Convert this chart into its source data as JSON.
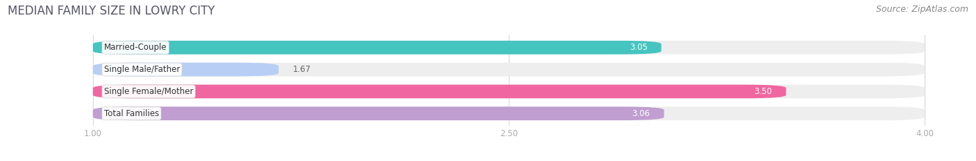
{
  "title": "MEDIAN FAMILY SIZE IN LOWRY CITY",
  "source": "Source: ZipAtlas.com",
  "categories": [
    "Married-Couple",
    "Single Male/Father",
    "Single Female/Mother",
    "Total Families"
  ],
  "values": [
    3.05,
    1.67,
    3.5,
    3.06
  ],
  "bar_colors": [
    "#45c4c0",
    "#b8cef5",
    "#f066a0",
    "#c09ed0"
  ],
  "value_inside": [
    true,
    false,
    true,
    true
  ],
  "xlim_data": [
    0.7,
    4.15
  ],
  "xmin": 1.0,
  "xmax": 4.0,
  "xticks": [
    1.0,
    2.5,
    4.0
  ],
  "xtick_labels": [
    "1.00",
    "2.50",
    "4.00"
  ],
  "bar_height": 0.62,
  "bar_gap": 0.38,
  "title_fontsize": 12,
  "label_fontsize": 8.5,
  "value_fontsize": 8.5,
  "source_fontsize": 9,
  "background_color": "#ffffff",
  "bar_bg_color": "#eeeeee",
  "grid_color": "#dddddd",
  "title_color": "#555566",
  "source_color": "#888888",
  "tick_color": "#aaaaaa"
}
